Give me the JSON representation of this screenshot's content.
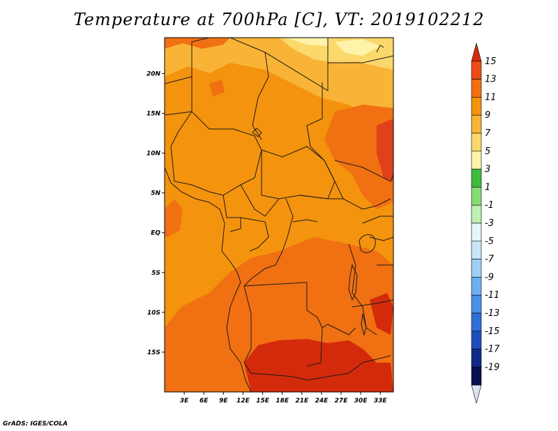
{
  "title": "Temperature at 700hPa [C], VT: 2019102212",
  "credit": "GrADS: IGES/COLA",
  "map": {
    "lat_labels": [
      {
        "label": "20N",
        "lat": 20
      },
      {
        "label": "15N",
        "lat": 15
      },
      {
        "label": "10N",
        "lat": 10
      },
      {
        "label": "5N",
        "lat": 5
      },
      {
        "label": "EQ",
        "lat": 0
      },
      {
        "label": "5S",
        "lat": -5
      },
      {
        "label": "10S",
        "lat": -10
      },
      {
        "label": "15S",
        "lat": -15
      }
    ],
    "lon_labels": [
      {
        "label": "3E",
        "lon": 3
      },
      {
        "label": "6E",
        "lon": 6
      },
      {
        "label": "9E",
        "lon": 9
      },
      {
        "label": "12E",
        "lon": 12
      },
      {
        "label": "15E",
        "lon": 15
      },
      {
        "label": "18E",
        "lon": 18
      },
      {
        "label": "21E",
        "lon": 21
      },
      {
        "label": "24E",
        "lon": 24
      },
      {
        "label": "27E",
        "lon": 27
      },
      {
        "label": "30E",
        "lon": 30
      },
      {
        "label": "33E",
        "lon": 33
      }
    ],
    "lon_range": [
      0,
      35
    ],
    "lat_range": [
      -20,
      24.5
    ]
  },
  "colorbar": {
    "labels": [
      "15",
      "13",
      "11",
      "9",
      "7",
      "5",
      "3",
      "1",
      "-1",
      "-3",
      "-5",
      "-7",
      "-9",
      "-11",
      "-13",
      "-15",
      "-17",
      "-19"
    ],
    "colors": [
      "#d42a0c",
      "#ee4b17",
      "#f07012",
      "#f4930d",
      "#f9b437",
      "#fbd86b",
      "#fef3a8",
      "#3dbb3d",
      "#86dc74",
      "#bff0b3",
      "#e3f8f7",
      "#c8e6f8",
      "#9fcff5",
      "#6eb0f0",
      "#4a90e6",
      "#2f6fd8",
      "#1c4fbd",
      "#102a85",
      "#06104f",
      "#dde1f3"
    ]
  }
}
